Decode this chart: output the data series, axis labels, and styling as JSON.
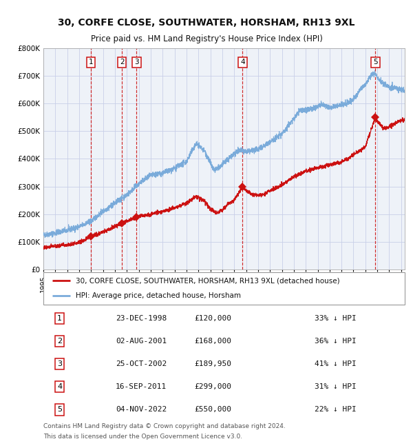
{
  "title": "30, CORFE CLOSE, SOUTHWATER, HORSHAM, RH13 9XL",
  "subtitle": "Price paid vs. HM Land Registry's House Price Index (HPI)",
  "footer1": "Contains HM Land Registry data © Crown copyright and database right 2024.",
  "footer2": "This data is licensed under the Open Government Licence v3.0.",
  "legend_label_red": "30, CORFE CLOSE, SOUTHWATER, HORSHAM, RH13 9XL (detached house)",
  "legend_label_blue": "HPI: Average price, detached house, Horsham",
  "table": [
    {
      "num": 1,
      "date": "23-DEC-1998",
      "price": "£120,000",
      "pct": "33% ↓ HPI"
    },
    {
      "num": 2,
      "date": "02-AUG-2001",
      "price": "£168,000",
      "pct": "36% ↓ HPI"
    },
    {
      "num": 3,
      "date": "25-OCT-2002",
      "price": "£189,950",
      "pct": "41% ↓ HPI"
    },
    {
      "num": 4,
      "date": "16-SEP-2011",
      "price": "£299,000",
      "pct": "31% ↓ HPI"
    },
    {
      "num": 5,
      "date": "04-NOV-2022",
      "price": "£550,000",
      "pct": "22% ↓ HPI"
    }
  ],
  "sale_dates_decimal": [
    1998.977,
    2001.587,
    2002.815,
    2011.708,
    2022.843
  ],
  "sale_prices": [
    120000,
    168000,
    189950,
    299000,
    550000
  ],
  "hpi_color": "#7aabda",
  "price_color": "#cc1111",
  "bg_color": "#eef2f8",
  "grid_color": "#c8cfe8",
  "vline_color": "#cc1111",
  "ylim": [
    0,
    800000
  ],
  "xlim_start": 1995.0,
  "xlim_end": 2025.3
}
